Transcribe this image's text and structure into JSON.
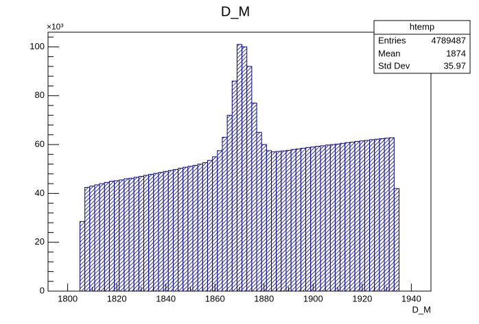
{
  "chart_data": {
    "type": "histogram",
    "title": "D_M",
    "x_label": "D_M",
    "y_multiplier": "×10³",
    "bins": [
      1805,
      1807,
      1809,
      1811,
      1813,
      1815,
      1817,
      1819,
      1821,
      1823,
      1825,
      1827,
      1829,
      1831,
      1833,
      1835,
      1837,
      1839,
      1841,
      1843,
      1845,
      1847,
      1849,
      1851,
      1853,
      1855,
      1857,
      1859,
      1861,
      1863,
      1865,
      1867,
      1869,
      1871,
      1873,
      1875,
      1877,
      1879,
      1881,
      1883,
      1885,
      1887,
      1889,
      1891,
      1893,
      1895,
      1897,
      1899,
      1901,
      1903,
      1905,
      1907,
      1909,
      1911,
      1913,
      1915,
      1917,
      1919,
      1921,
      1923,
      1925,
      1927,
      1929,
      1931,
      1933,
      1935
    ],
    "values": [
      28.5,
      42.5,
      43,
      43.5,
      44,
      44.5,
      45,
      45.2,
      45.5,
      46,
      46.2,
      46.6,
      47,
      47.4,
      47.8,
      48.2,
      48.6,
      49,
      49.4,
      49.8,
      50.3,
      50.7,
      51.1,
      51.5,
      52,
      52.6,
      53.5,
      55,
      57.5,
      63,
      72,
      86,
      101,
      100,
      92,
      77,
      65,
      60,
      57.5,
      57,
      57.2,
      57.4,
      57.6,
      58,
      58.2,
      58.5,
      58.8,
      59,
      59.3,
      59.5,
      59.8,
      60,
      60.2,
      60.5,
      60.8,
      61,
      61.3,
      61.5,
      61.7,
      62,
      62.2,
      62.4,
      62.6,
      62.8,
      42
    ],
    "color": "#000099",
    "xlim": [
      1792,
      1948
    ],
    "ylim": [
      0,
      106
    ],
    "xticks": [
      1800,
      1820,
      1840,
      1860,
      1880,
      1900,
      1920,
      1940
    ],
    "yticks": [
      0,
      20,
      40,
      60,
      80,
      100
    ],
    "stats": {
      "title": "htemp",
      "rows": [
        [
          "Entries",
          4789487
        ],
        [
          "Mean",
          1874
        ],
        [
          "Std Dev",
          35.97
        ]
      ]
    }
  }
}
